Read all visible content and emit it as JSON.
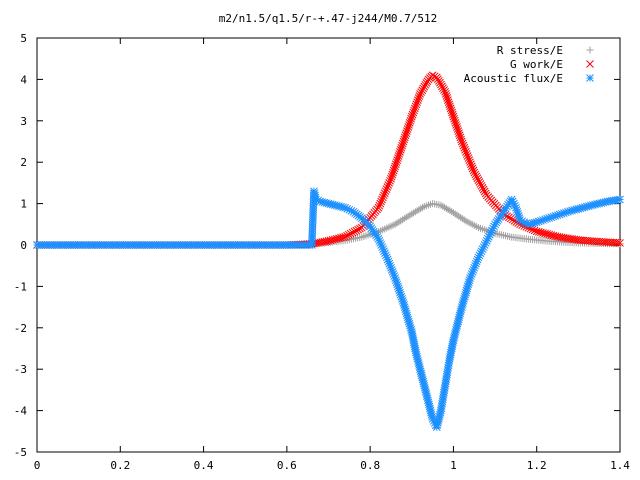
{
  "chart_data": {
    "type": "scatter",
    "title": "m2/n1.5/q1.5/r-+.47-j244/M0.7/512",
    "xlabel": "",
    "ylabel": "",
    "xlim": [
      0,
      1.4
    ],
    "ylim": [
      -5,
      5
    ],
    "grid": false,
    "legend_position": "top-right",
    "x_ticks": [
      "0",
      "0.2",
      "0.4",
      "0.6",
      "0.8",
      "1",
      "1.2",
      "1.4"
    ],
    "y_ticks": [
      "5",
      "4",
      "3",
      "2",
      "1",
      "0",
      "-1",
      "-2",
      "-3",
      "-4",
      "-5"
    ],
    "series": [
      {
        "name": "R stress/E",
        "marker": "plus",
        "color": "#a0a0a0",
        "x": [
          0.0,
          0.1,
          0.2,
          0.3,
          0.4,
          0.5,
          0.6,
          0.66,
          0.7,
          0.74,
          0.78,
          0.82,
          0.86,
          0.9,
          0.93,
          0.95,
          0.97,
          1.0,
          1.03,
          1.06,
          1.1,
          1.14,
          1.18,
          1.22,
          1.26,
          1.3,
          1.34,
          1.38,
          1.4
        ],
        "y": [
          0.0,
          0.0,
          0.0,
          0.0,
          0.0,
          0.0,
          0.0,
          0.02,
          0.06,
          0.11,
          0.19,
          0.32,
          0.5,
          0.75,
          0.93,
          1.0,
          0.96,
          0.78,
          0.58,
          0.42,
          0.28,
          0.19,
          0.14,
          0.1,
          0.07,
          0.05,
          0.04,
          0.03,
          0.03
        ]
      },
      {
        "name": "G work/E",
        "marker": "cross",
        "color": "#ff0000",
        "x": [
          0.0,
          0.1,
          0.2,
          0.3,
          0.4,
          0.5,
          0.6,
          0.66,
          0.7,
          0.74,
          0.78,
          0.82,
          0.85,
          0.88,
          0.9,
          0.92,
          0.94,
          0.95,
          0.96,
          0.98,
          1.0,
          1.02,
          1.05,
          1.08,
          1.12,
          1.16,
          1.2,
          1.25,
          1.3,
          1.35,
          1.4
        ],
        "y": [
          0.0,
          0.0,
          0.0,
          0.0,
          0.0,
          0.0,
          0.0,
          0.03,
          0.1,
          0.2,
          0.42,
          0.9,
          1.6,
          2.5,
          3.1,
          3.65,
          4.0,
          4.1,
          4.05,
          3.7,
          3.1,
          2.5,
          1.75,
          1.2,
          0.75,
          0.5,
          0.33,
          0.2,
          0.12,
          0.08,
          0.05
        ]
      },
      {
        "name": "Acoustic flux/E",
        "marker": "star",
        "color": "#1e90ff",
        "x": [
          0.0,
          0.1,
          0.2,
          0.3,
          0.4,
          0.5,
          0.6,
          0.66,
          0.665,
          0.67,
          0.68,
          0.7,
          0.72,
          0.74,
          0.76,
          0.78,
          0.8,
          0.82,
          0.84,
          0.86,
          0.88,
          0.9,
          0.91,
          0.92,
          0.93,
          0.94,
          0.95,
          0.96,
          0.97,
          0.98,
          0.99,
          1.0,
          1.02,
          1.04,
          1.06,
          1.08,
          1.1,
          1.12,
          1.14,
          1.15,
          1.16,
          1.18,
          1.2,
          1.22,
          1.25,
          1.28,
          1.31,
          1.34,
          1.37,
          1.4
        ],
        "y": [
          0.0,
          0.0,
          0.0,
          0.0,
          0.0,
          0.0,
          0.0,
          0.0,
          1.3,
          1.1,
          1.05,
          1.0,
          0.95,
          0.9,
          0.8,
          0.65,
          0.45,
          0.15,
          -0.3,
          -0.8,
          -1.4,
          -2.1,
          -2.6,
          -3.0,
          -3.4,
          -3.8,
          -4.2,
          -4.4,
          -4.0,
          -3.4,
          -2.8,
          -2.3,
          -1.5,
          -0.8,
          -0.3,
          0.1,
          0.5,
          0.8,
          1.1,
          0.9,
          0.6,
          0.5,
          0.55,
          0.62,
          0.72,
          0.82,
          0.9,
          0.98,
          1.05,
          1.1
        ]
      }
    ]
  }
}
